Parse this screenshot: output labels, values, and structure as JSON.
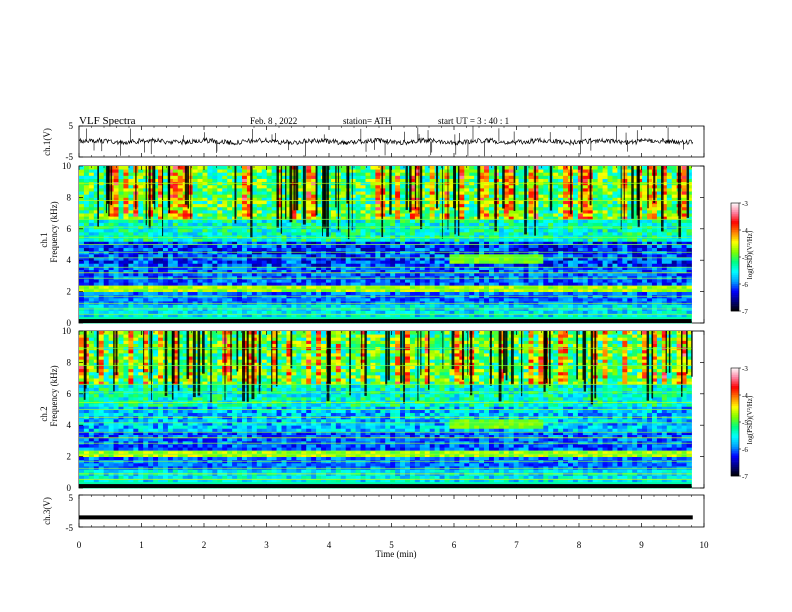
{
  "header": {
    "title": "VLF  Spectra",
    "date": "Feb. 8  , 2022",
    "station": "station= ATH",
    "start_ut": "start  UT  =   3  : 40 : 1"
  },
  "chart_data": [
    {
      "type": "line",
      "panel": "ch1-waveform",
      "ylabel": "ch.1(V)",
      "ylim": [
        -5,
        5
      ],
      "yticks": [
        5,
        -5
      ],
      "ytick_labels": [
        "5",
        "-5"
      ],
      "xlim": [
        0,
        10
      ],
      "baseline_value": 0,
      "trace_color": "#000000"
    },
    {
      "type": "heatmap",
      "panel": "ch1-spectrogram",
      "ylabel_lines": [
        "ch.1",
        "Frequency  (kHz)"
      ],
      "ylim": [
        0,
        10
      ],
      "yticks": [
        0,
        2,
        4,
        6,
        8,
        10
      ],
      "xlim": [
        0,
        9.8
      ],
      "colorbar": {
        "label": "log(PSD)(V²/Hz)",
        "range": [
          -7,
          -3
        ],
        "ticks": [
          -3,
          -4,
          -5,
          -6,
          -7
        ]
      }
    },
    {
      "type": "heatmap",
      "panel": "ch2-spectrogram",
      "ylabel_lines": [
        "ch.2",
        "Frequency  (kHz)"
      ],
      "ylim": [
        0,
        10
      ],
      "yticks": [
        0,
        2,
        4,
        6,
        8,
        10
      ],
      "xlim": [
        0,
        9.8
      ],
      "colorbar": {
        "label": "log(PSD)(V²/Hz)",
        "range": [
          -7,
          -3
        ],
        "ticks": [
          -3,
          -4,
          -5,
          -6,
          -7
        ]
      }
    },
    {
      "type": "line",
      "panel": "ch3-waveform",
      "ylabel": "ch.3(V)",
      "ylim": [
        -5,
        5
      ],
      "yticks": [
        5,
        -5
      ],
      "ytick_labels": [
        "5",
        "-5"
      ],
      "xlim": [
        0,
        10
      ],
      "trace_value": -2,
      "trace_color": "#000000"
    }
  ],
  "xaxis": {
    "label": "Time  (min)",
    "range": [
      0,
      10
    ],
    "ticks": [
      0,
      1,
      2,
      3,
      4,
      5,
      6,
      7,
      8,
      9,
      10
    ]
  },
  "colors": {
    "background": "#ffffff",
    "axis": "#000000",
    "colormap": [
      "#000000",
      "#000080",
      "#0000ff",
      "#00a0ff",
      "#00ffff",
      "#00ff80",
      "#80ff00",
      "#ffff00",
      "#ff8000",
      "#ff0000",
      "#ff80a0",
      "#ffffff"
    ]
  }
}
